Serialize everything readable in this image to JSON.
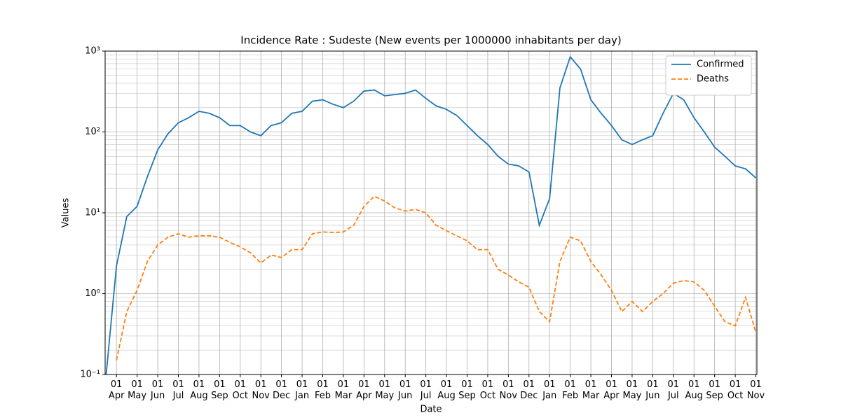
{
  "chart_data": {
    "type": "line",
    "title": "Incidence Rate : Sudeste  (New events per 1000000 inhabitants per day)",
    "x_label": "Date",
    "y_label": "Values",
    "categories": [
      null,
      "01 Apr",
      null,
      "01 May",
      null,
      "01 Jun",
      null,
      "01 Jul",
      null,
      "01 Aug",
      null,
      "01 Sep",
      null,
      "01 Oct",
      null,
      "01 Nov",
      null,
      "01 Dec",
      null,
      "01 Jan",
      null,
      "01 Feb",
      null,
      "01 Mar",
      null,
      "01 Apr",
      null,
      "01 May",
      null,
      "01 Jun",
      null,
      "01 Jul",
      null,
      "01 Aug",
      null,
      "01 Sep",
      null,
      "01 Oct",
      null,
      "01 Nov",
      null,
      "01 Dec",
      null,
      "01 Jan",
      null,
      "01 Feb",
      null,
      "01 Mar",
      null,
      "01 Apr",
      null,
      "01 May",
      null,
      "01 Jun",
      null,
      "01 Jul",
      null,
      "01 Aug",
      null,
      "01 Sep",
      null,
      "01 Oct",
      null,
      "01 Nov"
    ],
    "series": [
      {
        "name": "Confirmed",
        "color": "#1f77b4",
        "dash": "solid",
        "values": [
          0.1,
          2.2,
          9,
          12,
          28,
          60,
          95,
          130,
          150,
          180,
          170,
          150,
          120,
          120,
          100,
          90,
          120,
          130,
          170,
          180,
          240,
          250,
          220,
          200,
          240,
          320,
          330,
          280,
          290,
          300,
          330,
          260,
          210,
          190,
          160,
          120,
          90,
          70,
          50,
          40,
          38,
          32,
          7,
          15,
          350,
          850,
          600,
          250,
          170,
          120,
          80,
          70,
          80,
          90,
          170,
          300,
          250,
          150,
          100,
          65,
          50,
          38,
          35,
          27
        ]
      },
      {
        "name": "Deaths",
        "color": "#ff7f0e",
        "dash": "dashed",
        "values": [
          null,
          0.15,
          0.6,
          1.1,
          2.5,
          4,
          5,
          5.5,
          5,
          5.2,
          5.2,
          5,
          4.3,
          3.8,
          3.2,
          2.4,
          3,
          2.8,
          3.5,
          3.5,
          5.5,
          5.8,
          5.7,
          5.8,
          7,
          12,
          16,
          14,
          11.5,
          10.5,
          11,
          10,
          7,
          6,
          5.2,
          4.5,
          3.5,
          3.5,
          2,
          1.7,
          1.4,
          1.2,
          0.6,
          0.45,
          2.5,
          5,
          4.5,
          2.5,
          1.7,
          1.1,
          0.6,
          0.8,
          0.6,
          0.8,
          1.0,
          1.35,
          1.45,
          1.4,
          1.1,
          0.7,
          0.45,
          0.4,
          0.9,
          0.33
        ]
      }
    ],
    "ylim": [
      0.1,
      1000
    ],
    "yticks": [
      {
        "value": 0.1,
        "label": "10⁻¹"
      },
      {
        "value": 1,
        "label": "10⁰"
      },
      {
        "value": 10,
        "label": "10¹"
      },
      {
        "value": 100,
        "label": "10²"
      },
      {
        "value": 1000,
        "label": "10³"
      }
    ],
    "log_y": true,
    "grid": true,
    "legend": "upper right"
  }
}
